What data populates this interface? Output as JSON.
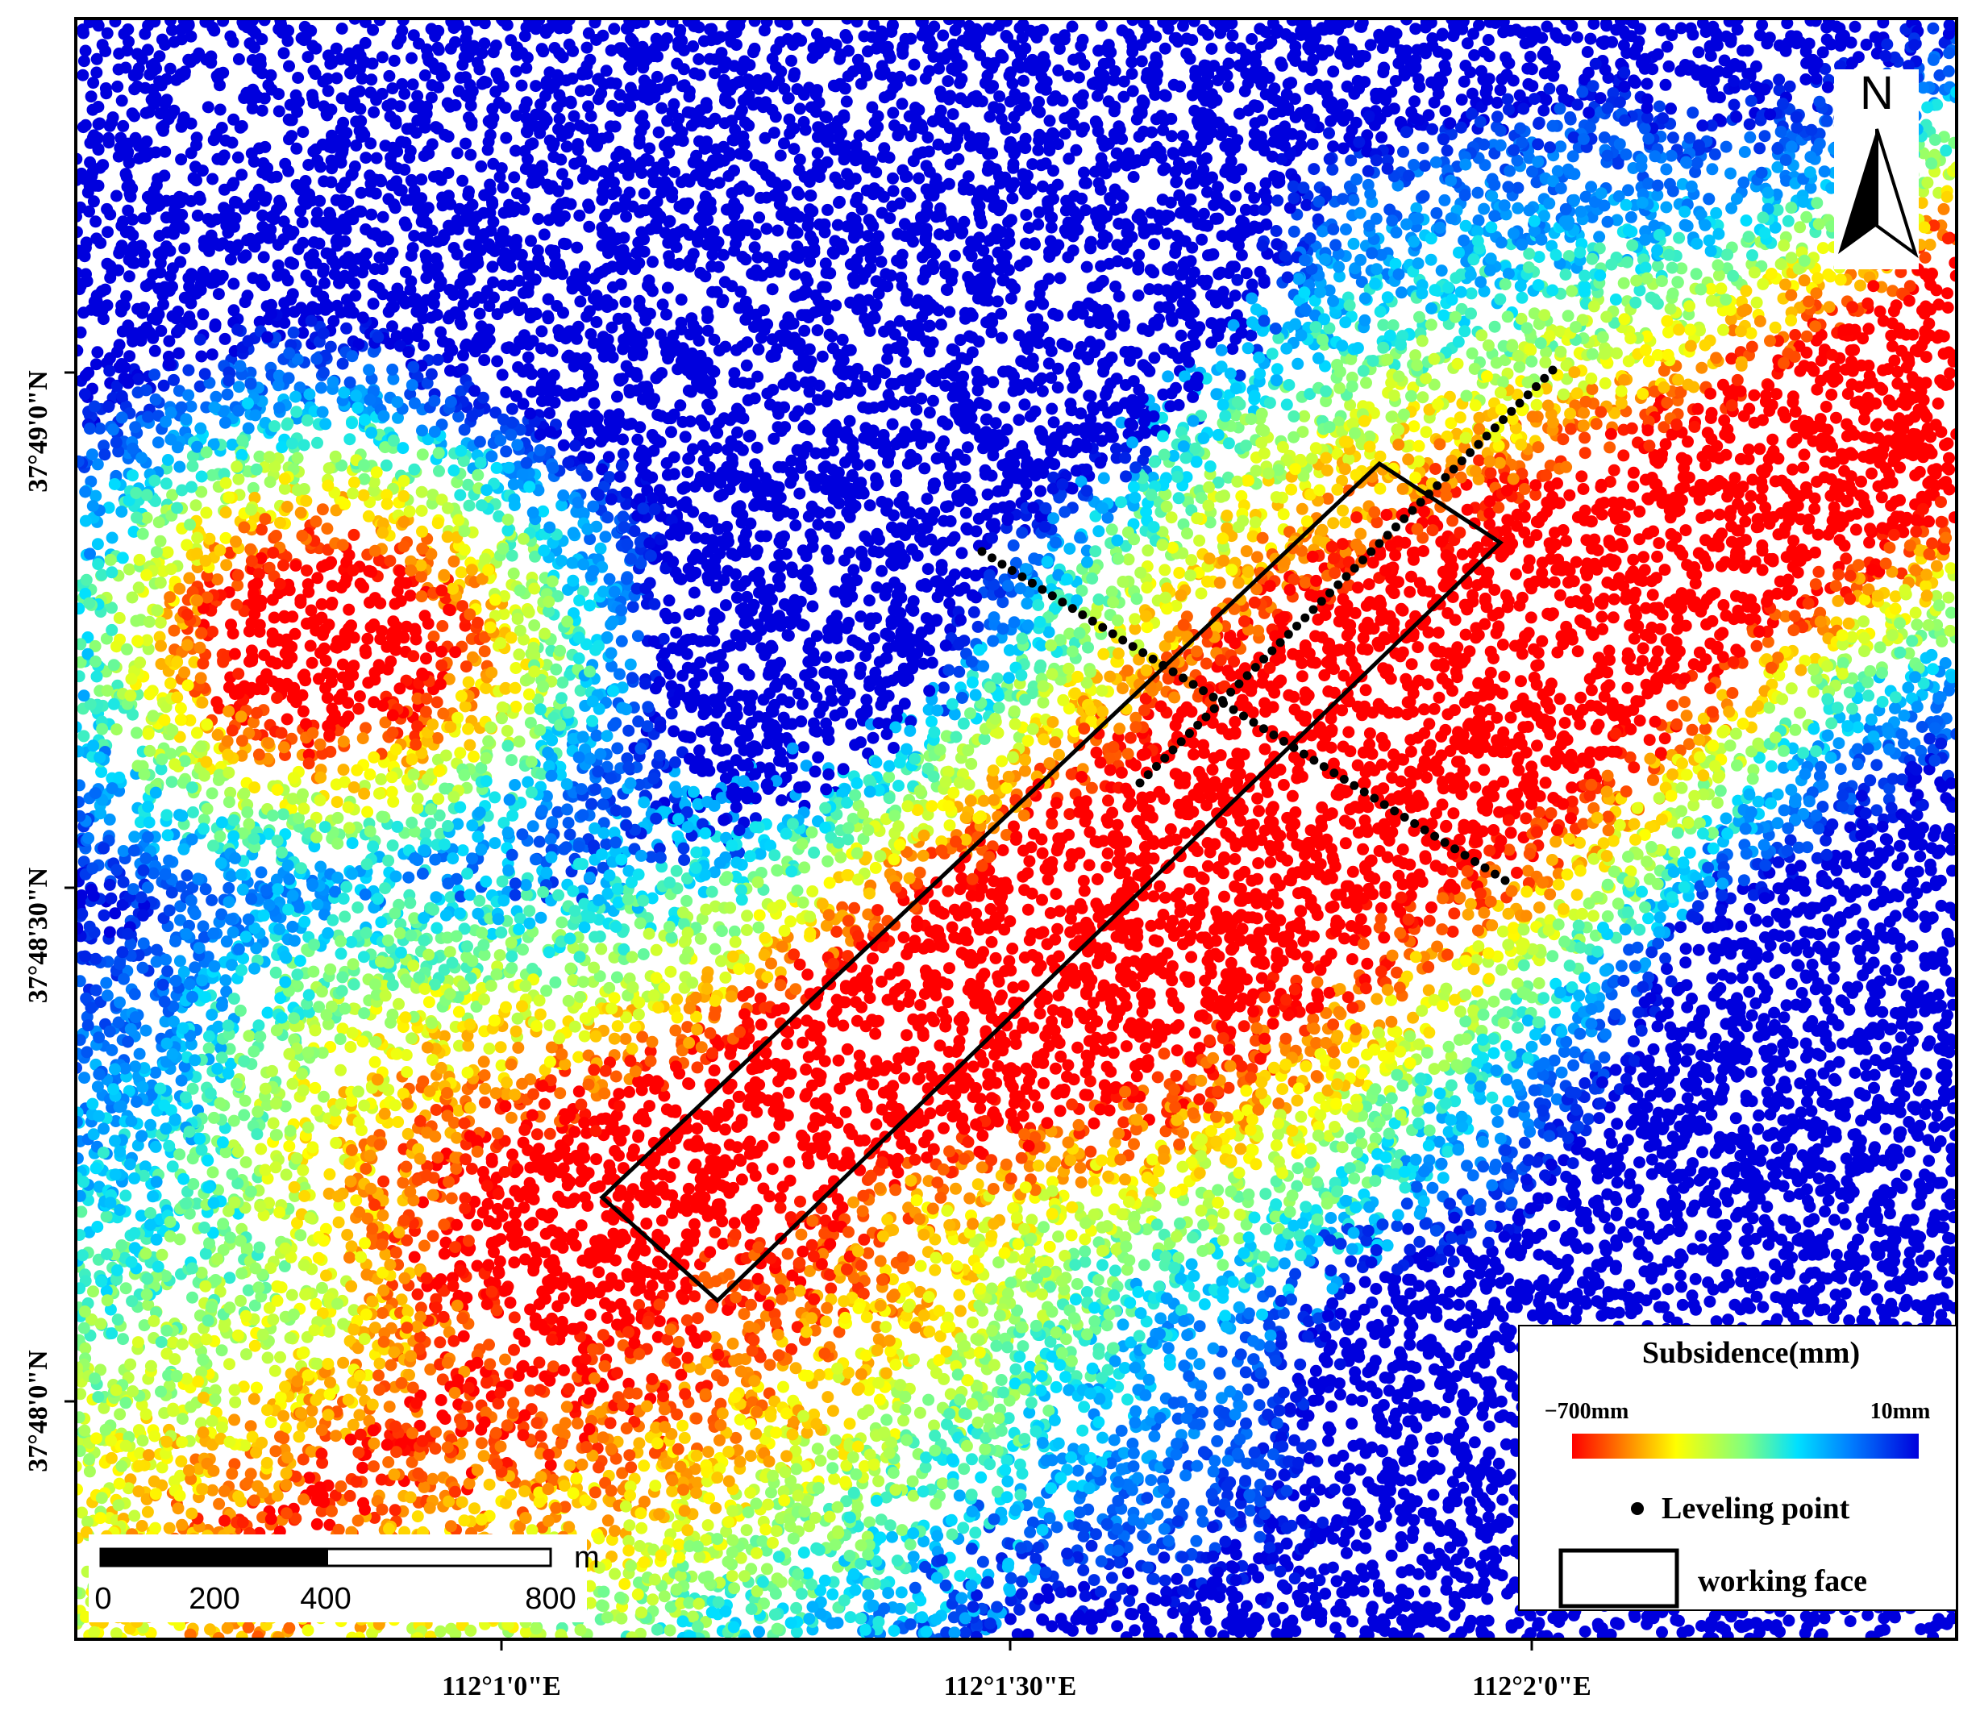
{
  "map": {
    "x_ticks": [
      "112°1'0\"E",
      "112°1'30\"E",
      "112°2'0\"E"
    ],
    "y_ticks": [
      "37°49'0\"N",
      "37°48'30\"N",
      "37°48'0\"N"
    ],
    "north_arrow": "N",
    "legend": {
      "title": "Subsidence(mm)",
      "min_label": "−700mm",
      "max_label": "10mm",
      "leveling_point": "Leveling point",
      "working_face": "working face"
    },
    "scale_bar": {
      "labels": [
        "0",
        "200",
        "400",
        "800"
      ],
      "unit": "m"
    }
  }
}
